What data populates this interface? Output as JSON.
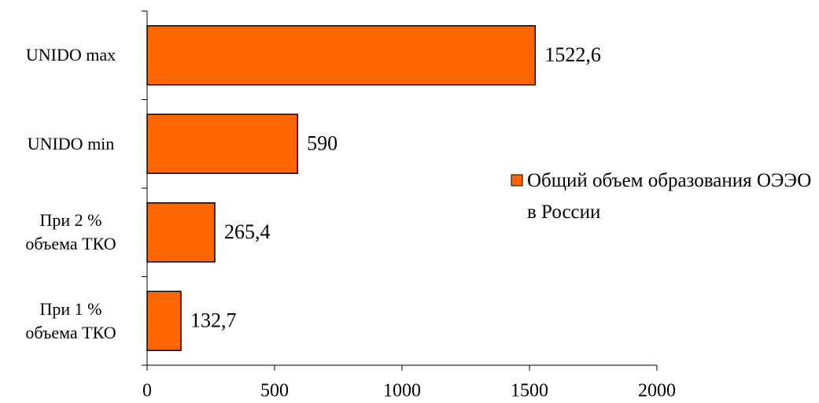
{
  "chart_data": {
    "type": "bar",
    "orientation": "horizontal",
    "categories": [
      "UNIDO max",
      "UNIDO min",
      "При 2 %\nобъема ТКО",
      "При 1 %\nобъема ТКО"
    ],
    "series": [
      {
        "name": "Общий объем образования ОЭЭО в России",
        "color": "#ff6600",
        "values": [
          1522.6,
          590,
          265.4,
          132.7
        ],
        "value_labels": [
          "1522,6",
          "590",
          "265,4",
          "132,7"
        ]
      }
    ],
    "xlim": [
      0,
      2000
    ],
    "xticks": [
      0,
      500,
      1000,
      1500,
      2000
    ],
    "legend": "right"
  }
}
